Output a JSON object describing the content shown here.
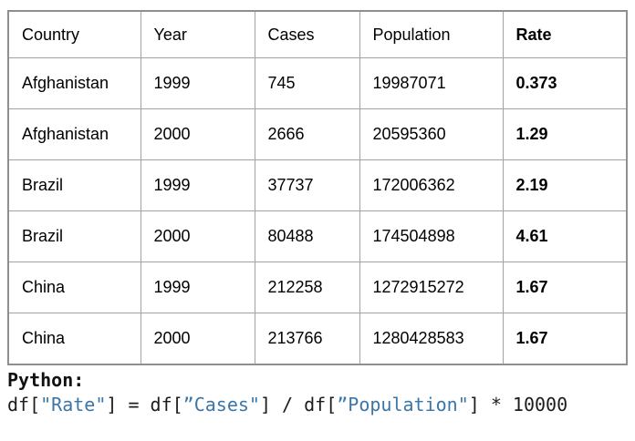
{
  "table": {
    "headers": [
      "Country",
      "Year",
      "Cases",
      "Population",
      "Rate"
    ],
    "bold_column": "Rate",
    "rows": [
      [
        "Afghanistan",
        "1999",
        "745",
        "19987071",
        "0.373"
      ],
      [
        "Afghanistan",
        "2000",
        "2666",
        "20595360",
        "1.29"
      ],
      [
        "Brazil",
        "1999",
        "37737",
        "172006362",
        "2.19"
      ],
      [
        "Brazil",
        "2000",
        "80488",
        "174504898",
        "4.61"
      ],
      [
        "China",
        "1999",
        "212258",
        "1272915272",
        "1.67"
      ],
      [
        "China",
        "2000",
        "213766",
        "1280428583",
        "1.67"
      ]
    ]
  },
  "code": {
    "label": "Python:",
    "full_text": "df[\"Rate\"] = df[”Cases\"] / df[”Population\"] * 10000",
    "segments": [
      {
        "text": "df[",
        "type": "code"
      },
      {
        "text": "\"Rate\"",
        "type": "string"
      },
      {
        "text": "] = df[",
        "type": "code"
      },
      {
        "text": "”Cases\"",
        "type": "string"
      },
      {
        "text": "] / df[",
        "type": "code"
      },
      {
        "text": "”Population\"",
        "type": "string"
      },
      {
        "text": "] * 10000",
        "type": "code"
      }
    ]
  },
  "colors": {
    "string_literal": "#3a76a8",
    "code_text": "#1c1c1c",
    "table_border": "#a2a2a2",
    "table_outer_border": "#8f8f8f",
    "text": "#000000",
    "background": "#ffffff"
  }
}
